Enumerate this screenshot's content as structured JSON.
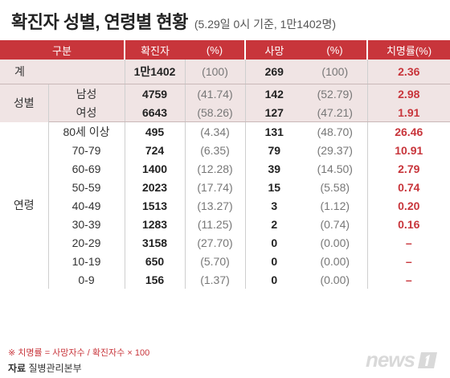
{
  "title": "확진자 성별, 연령별 현황",
  "subtitle": "(5.29일 0시 기준, 1만1402명)",
  "header": [
    "구분",
    "확진자",
    "(%)",
    "사망",
    "(%)",
    "치명률(%)"
  ],
  "total": {
    "label": "계",
    "confirmed": "1만1402",
    "confirmed_pct": "(100)",
    "deaths": "269",
    "deaths_pct": "(100)",
    "fatality": "2.36"
  },
  "sex": {
    "label": "성별",
    "rows": [
      {
        "group": "남성",
        "confirmed": "4759",
        "confirmed_pct": "(41.74)",
        "deaths": "142",
        "deaths_pct": "(52.79)",
        "fatality": "2.98"
      },
      {
        "group": "여성",
        "confirmed": "6643",
        "confirmed_pct": "(58.26)",
        "deaths": "127",
        "deaths_pct": "(47.21)",
        "fatality": "1.91"
      }
    ]
  },
  "age": {
    "label": "연령",
    "rows": [
      {
        "group": "80세 이상",
        "confirmed": "495",
        "confirmed_pct": "(4.34)",
        "deaths": "131",
        "deaths_pct": "(48.70)",
        "fatality": "26.46"
      },
      {
        "group": "70-79",
        "confirmed": "724",
        "confirmed_pct": "(6.35)",
        "deaths": "79",
        "deaths_pct": "(29.37)",
        "fatality": "10.91"
      },
      {
        "group": "60-69",
        "confirmed": "1400",
        "confirmed_pct": "(12.28)",
        "deaths": "39",
        "deaths_pct": "(14.50)",
        "fatality": "2.79"
      },
      {
        "group": "50-59",
        "confirmed": "2023",
        "confirmed_pct": "(17.74)",
        "deaths": "15",
        "deaths_pct": "(5.58)",
        "fatality": "0.74"
      },
      {
        "group": "40-49",
        "confirmed": "1513",
        "confirmed_pct": "(13.27)",
        "deaths": "3",
        "deaths_pct": "(1.12)",
        "fatality": "0.20"
      },
      {
        "group": "30-39",
        "confirmed": "1283",
        "confirmed_pct": "(11.25)",
        "deaths": "2",
        "deaths_pct": "(0.74)",
        "fatality": "0.16"
      },
      {
        "group": "20-29",
        "confirmed": "3158",
        "confirmed_pct": "(27.70)",
        "deaths": "0",
        "deaths_pct": "(0.00)",
        "fatality": "–"
      },
      {
        "group": "10-19",
        "confirmed": "650",
        "confirmed_pct": "(5.70)",
        "deaths": "0",
        "deaths_pct": "(0.00)",
        "fatality": "–"
      },
      {
        "group": "0-9",
        "confirmed": "156",
        "confirmed_pct": "(1.37)",
        "deaths": "0",
        "deaths_pct": "(0.00)",
        "fatality": "–"
      }
    ]
  },
  "footnote": "※ 치명률 = 사망자수 / 확진자수 × 100",
  "source_label": "자료",
  "source_text": "질병관리본부",
  "logo_text": "news",
  "colors": {
    "accent": "#c8353b",
    "band": "#f0e4e4"
  }
}
